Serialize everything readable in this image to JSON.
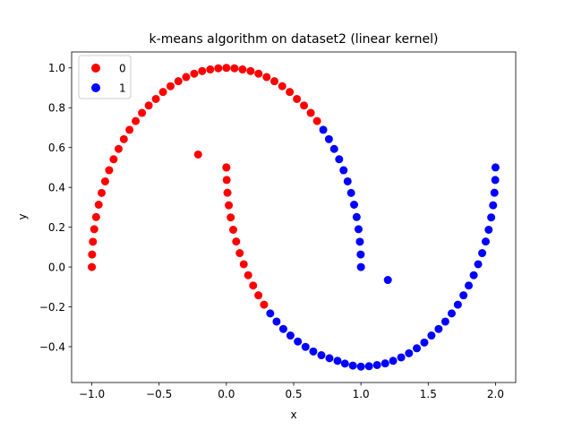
{
  "chart_data": {
    "type": "scatter",
    "title": "k-means algorithm on dataset2 (linear kernel)",
    "xlabel": "x",
    "ylabel": "y",
    "xlim": [
      -1.15,
      2.15
    ],
    "ylim": [
      -0.58,
      1.08
    ],
    "x_ticks": [
      {
        "value": -1.0,
        "label": "−1.0"
      },
      {
        "value": -0.5,
        "label": "−0.5"
      },
      {
        "value": 0.0,
        "label": "0.0"
      },
      {
        "value": 0.5,
        "label": "0.5"
      },
      {
        "value": 1.0,
        "label": "1.0"
      },
      {
        "value": 1.5,
        "label": "1.5"
      },
      {
        "value": 2.0,
        "label": "2.0"
      }
    ],
    "y_ticks": [
      {
        "value": -0.4,
        "label": "−0.4"
      },
      {
        "value": -0.2,
        "label": "−0.2"
      },
      {
        "value": 0.0,
        "label": "0.0"
      },
      {
        "value": 0.2,
        "label": "0.2"
      },
      {
        "value": 0.4,
        "label": "0.4"
      },
      {
        "value": 0.6,
        "label": "0.6"
      },
      {
        "value": 0.8,
        "label": "0.8"
      },
      {
        "value": 1.0,
        "label": "1.0"
      }
    ],
    "grid": false,
    "legend_position": "upper-left",
    "series": [
      {
        "name": "0",
        "color": "#ff0000",
        "points": [
          [
            -1.0,
            0.0
          ],
          [
            -0.998,
            0.063
          ],
          [
            -0.992,
            0.127
          ],
          [
            -0.982,
            0.19
          ],
          [
            -0.968,
            0.251
          ],
          [
            -0.949,
            0.313
          ],
          [
            -0.927,
            0.372
          ],
          [
            -0.901,
            0.43
          ],
          [
            -0.871,
            0.486
          ],
          [
            -0.838,
            0.541
          ],
          [
            -0.801,
            0.593
          ],
          [
            -0.762,
            0.642
          ],
          [
            -0.72,
            0.689
          ],
          [
            -0.674,
            0.733
          ],
          [
            -0.627,
            0.774
          ],
          [
            -0.577,
            0.811
          ],
          [
            -0.524,
            0.844
          ],
          [
            -0.471,
            0.879
          ],
          [
            -0.415,
            0.908
          ],
          [
            -0.357,
            0.933
          ],
          [
            -0.299,
            0.954
          ],
          [
            -0.239,
            0.971
          ],
          [
            -0.18,
            0.984
          ],
          [
            -0.12,
            0.992
          ],
          [
            -0.06,
            0.998
          ],
          [
            0.0,
            1.0
          ],
          [
            0.06,
            0.998
          ],
          [
            0.12,
            0.992
          ],
          [
            0.18,
            0.984
          ],
          [
            0.239,
            0.971
          ],
          [
            0.299,
            0.954
          ],
          [
            0.357,
            0.933
          ],
          [
            0.415,
            0.908
          ],
          [
            0.471,
            0.879
          ],
          [
            0.524,
            0.844
          ],
          [
            0.577,
            0.811
          ],
          [
            0.627,
            0.774
          ],
          [
            0.674,
            0.733
          ],
          [
            -0.21,
            0.565
          ],
          [
            0.0,
            0.5
          ],
          [
            0.0,
            0.5
          ],
          [
            0.002,
            0.437
          ],
          [
            0.008,
            0.373
          ],
          [
            0.018,
            0.31
          ],
          [
            0.032,
            0.249
          ],
          [
            0.051,
            0.187
          ],
          [
            0.073,
            0.128
          ],
          [
            0.099,
            0.07
          ],
          [
            0.129,
            0.014
          ],
          [
            0.162,
            -0.041
          ],
          [
            0.199,
            -0.093
          ],
          [
            0.238,
            -0.142
          ],
          [
            0.28,
            -0.189
          ]
        ]
      },
      {
        "name": "1",
        "color": "#0000ff",
        "points": [
          [
            0.72,
            0.689
          ],
          [
            0.762,
            0.642
          ],
          [
            0.801,
            0.593
          ],
          [
            0.838,
            0.541
          ],
          [
            0.871,
            0.486
          ],
          [
            0.901,
            0.43
          ],
          [
            0.927,
            0.372
          ],
          [
            0.949,
            0.313
          ],
          [
            0.968,
            0.251
          ],
          [
            0.982,
            0.19
          ],
          [
            0.992,
            0.127
          ],
          [
            0.998,
            0.063
          ],
          [
            1.0,
            0.0
          ],
          [
            1.2,
            -0.065
          ],
          [
            0.326,
            -0.233
          ],
          [
            0.373,
            -0.274
          ],
          [
            0.423,
            -0.311
          ],
          [
            0.476,
            -0.344
          ],
          [
            0.531,
            -0.374
          ],
          [
            0.588,
            -0.401
          ],
          [
            0.646,
            -0.424
          ],
          [
            0.706,
            -0.443
          ],
          [
            0.766,
            -0.458
          ],
          [
            0.826,
            -0.471
          ],
          [
            0.881,
            -0.485
          ],
          [
            0.94,
            -0.495
          ],
          [
            1.0,
            -0.5
          ],
          [
            1.06,
            -0.498
          ],
          [
            1.12,
            -0.492
          ],
          [
            1.18,
            -0.484
          ],
          [
            1.239,
            -0.471
          ],
          [
            1.299,
            -0.454
          ],
          [
            1.357,
            -0.433
          ],
          [
            1.415,
            -0.408
          ],
          [
            1.471,
            -0.379
          ],
          [
            1.524,
            -0.344
          ],
          [
            1.577,
            -0.311
          ],
          [
            1.627,
            -0.274
          ],
          [
            1.674,
            -0.233
          ],
          [
            1.72,
            -0.189
          ],
          [
            1.762,
            -0.142
          ],
          [
            1.801,
            -0.093
          ],
          [
            1.838,
            -0.041
          ],
          [
            1.871,
            0.014
          ],
          [
            1.901,
            0.07
          ],
          [
            1.927,
            0.128
          ],
          [
            1.949,
            0.187
          ],
          [
            1.968,
            0.249
          ],
          [
            1.982,
            0.31
          ],
          [
            1.992,
            0.373
          ],
          [
            1.998,
            0.437
          ],
          [
            2.0,
            0.5
          ]
        ]
      }
    ]
  }
}
